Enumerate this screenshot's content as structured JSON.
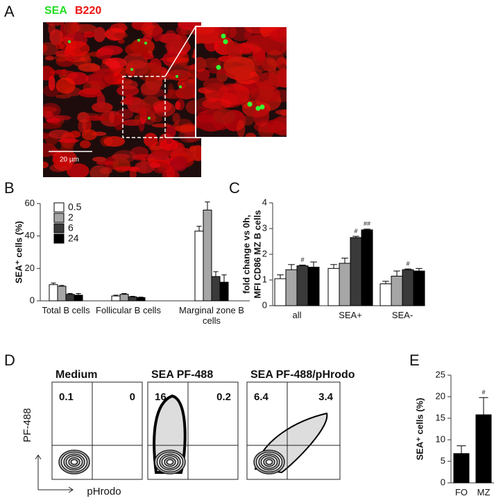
{
  "panel_labels": [
    "A",
    "B",
    "C",
    "D",
    "E"
  ],
  "image": {
    "stain_labels": [
      "SEA",
      "B220"
    ],
    "stain_colors": [
      "#22dd22",
      "#ee1111"
    ],
    "scale_bar": "20 µm"
  },
  "chart_data": [
    {
      "type": "bar",
      "ylabel": "SEA⁺ cells (%)",
      "categories": [
        "Total B cells",
        "Follicular B cells",
        "Marginal zone B cells"
      ],
      "series": [
        {
          "name": "0.5",
          "color": "#ffffff",
          "values": [
            10,
            3,
            43
          ],
          "errors": [
            1,
            0.5,
            3
          ]
        },
        {
          "name": "2",
          "color": "#a6a6a6",
          "values": [
            9,
            4,
            56
          ],
          "errors": [
            0.5,
            0.5,
            5
          ]
        },
        {
          "name": "6",
          "color": "#3a3a3a",
          "values": [
            4,
            2.5,
            15
          ],
          "errors": [
            0.5,
            0.3,
            3
          ]
        },
        {
          "name": "24",
          "color": "#000000",
          "values": [
            3.5,
            2,
            11.5
          ],
          "errors": [
            1,
            0.3,
            4.5
          ]
        }
      ],
      "ylim": [
        0,
        60
      ],
      "yticks": [
        0,
        20,
        40,
        60
      ],
      "legend": "top-left"
    },
    {
      "type": "bar",
      "ylabel": [
        "fold change vs 0h,",
        "MFI CD86 MZ B cells"
      ],
      "categories": [
        "all",
        "SEA+",
        "SEA-"
      ],
      "series": [
        {
          "color": "#ffffff",
          "values": [
            1.05,
            1.45,
            0.85
          ],
          "errors": [
            0.15,
            0.15,
            0.1
          ]
        },
        {
          "color": "#a6a6a6",
          "values": [
            1.4,
            1.65,
            1.15
          ],
          "errors": [
            0.2,
            0.2,
            0.2
          ]
        },
        {
          "color": "#3a3a3a",
          "values": [
            1.55,
            2.65,
            1.4
          ],
          "errors": [
            0.03,
            0.05,
            0.03
          ],
          "annotations": [
            "#",
            "#",
            "#"
          ]
        },
        {
          "color": "#000000",
          "values": [
            1.5,
            2.95,
            1.35
          ],
          "errors": [
            0.2,
            0.03,
            0.1
          ],
          "annotations": [
            null,
            "##",
            null
          ]
        }
      ],
      "ylim": [
        0,
        4
      ],
      "yticks": [
        0,
        1,
        2,
        3,
        4
      ]
    },
    {
      "type": "bar",
      "ylabel": "SEA⁺ cells (%)",
      "categories": [
        "FO",
        "MZ"
      ],
      "values": [
        6.8,
        15.8
      ],
      "errors": [
        1.8,
        4
      ],
      "annotations": [
        null,
        "#"
      ],
      "color": "#000000",
      "ylim": [
        0,
        25
      ],
      "yticks": [
        0,
        5,
        10,
        15,
        20,
        25
      ]
    }
  ],
  "flow": {
    "xlabel": "pHrodo",
    "ylabel": "PF-488",
    "plots": [
      {
        "title": "Medium",
        "quadrants": [
          0.1,
          0
        ]
      },
      {
        "title": "SEA PF-488",
        "quadrants": [
          16,
          0.2
        ]
      },
      {
        "title": "SEA PF-488/pHrodo",
        "quadrants": [
          6.4,
          3.4
        ]
      }
    ]
  }
}
